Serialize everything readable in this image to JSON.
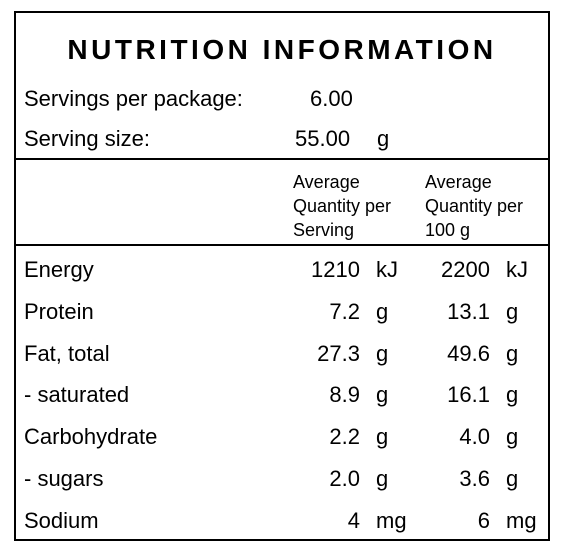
{
  "panel": {
    "title": "NUTRITION INFORMATION",
    "servings_label": "Servings per package:",
    "servings_value": "6.00",
    "serving_size_label": "Serving size:",
    "serving_size_value": "55.00",
    "serving_size_unit": "g"
  },
  "columns": {
    "per_serving": [
      "Average",
      "Quantity per",
      "Serving"
    ],
    "per_100g": [
      "Average",
      "Quantity per",
      "100 g"
    ]
  },
  "rows": [
    {
      "name": "Energy",
      "serving": "1210",
      "serving_unit": "kJ",
      "per100": "2200",
      "per100_unit": "kJ"
    },
    {
      "name": "Protein",
      "serving": "7.2",
      "serving_unit": "g",
      "per100": "13.1",
      "per100_unit": "g"
    },
    {
      "name": "Fat, total",
      "serving": "27.3",
      "serving_unit": "g",
      "per100": "49.6",
      "per100_unit": "g"
    },
    {
      "name": "- saturated",
      "serving": "8.9",
      "serving_unit": "g",
      "per100": "16.1",
      "per100_unit": "g"
    },
    {
      "name": "Carbohydrate",
      "serving": "2.2",
      "serving_unit": "g",
      "per100": "4.0",
      "per100_unit": "g"
    },
    {
      "name": "- sugars",
      "serving": "2.0",
      "serving_unit": "g",
      "per100": "3.6",
      "per100_unit": "g"
    },
    {
      "name": "Sodium",
      "serving": "4",
      "serving_unit": "mg",
      "per100": "6",
      "per100_unit": "mg"
    }
  ]
}
